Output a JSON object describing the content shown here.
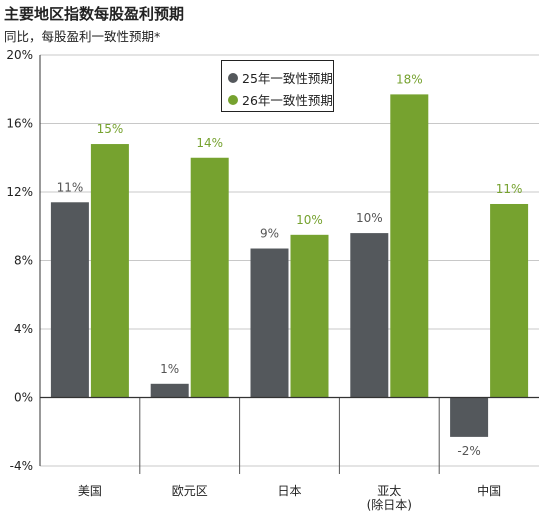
{
  "header": {
    "title": "主要地区指数每股盈利预期",
    "subtitle": "同比，每股盈利一致性预期*"
  },
  "colors": {
    "series1": "#54585c",
    "series2": "#76a22f",
    "axis": "#333333",
    "grid": "#c8c8c8"
  },
  "chart_data": {
    "type": "bar",
    "title": "主要地区指数每股盈利预期",
    "subtitle": "同比，每股盈利一致性预期*",
    "categories": [
      [
        "美国"
      ],
      [
        "欧元区"
      ],
      [
        "日本"
      ],
      [
        "亚太",
        "(除日本)"
      ],
      [
        "中国"
      ]
    ],
    "series": [
      {
        "name": "25年一致性预期",
        "values": [
          11.4,
          0.8,
          8.7,
          9.6,
          -2.3
        ],
        "labels": [
          "11%",
          "1%",
          "9%",
          "10%",
          "-2%"
        ]
      },
      {
        "name": "26年一致性预期",
        "values": [
          14.8,
          14.0,
          9.5,
          17.7,
          11.3
        ],
        "labels": [
          "15%",
          "14%",
          "10%",
          "18%",
          "11%"
        ]
      }
    ],
    "ylim": [
      -4,
      20
    ],
    "yticks": [
      -4,
      0,
      4,
      8,
      12,
      16,
      20
    ],
    "ytick_labels": [
      "-4%",
      "0%",
      "4%",
      "8%",
      "12%",
      "16%",
      "20%"
    ],
    "grid": true,
    "legend_position": "top-center"
  }
}
